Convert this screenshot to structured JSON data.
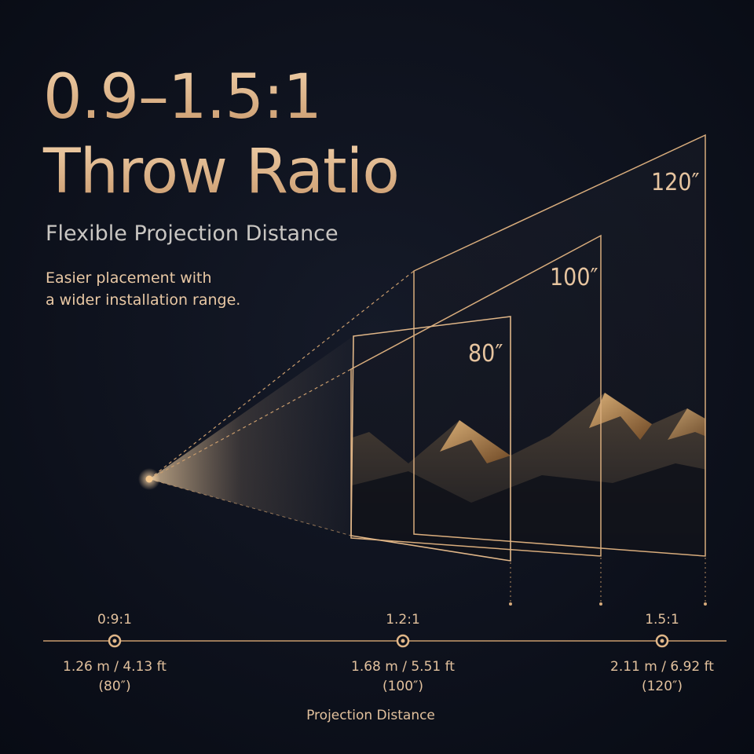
{
  "header": {
    "title_lines": [
      "0.9–1.5:1",
      "Throw Ratio"
    ],
    "subtitle": "Flexible Projection Distance",
    "description_lines": [
      "Easier placement with",
      "a wider installation range."
    ]
  },
  "screens": [
    {
      "label": "80″"
    },
    {
      "label": "100″"
    },
    {
      "label": "120″"
    }
  ],
  "markers": [
    {
      "ratio": "0:9:1",
      "distance": "1.26 m / 4.13 ft",
      "size": "(80″)"
    },
    {
      "ratio": "1.2:1",
      "distance": "1.68 m / 5.51 ft",
      "size": "(100″)"
    },
    {
      "ratio": "1.5:1",
      "distance": "2.11 m / 6.92 ft",
      "size": "(120″)"
    }
  ],
  "axis_label": "Projection Distance"
}
